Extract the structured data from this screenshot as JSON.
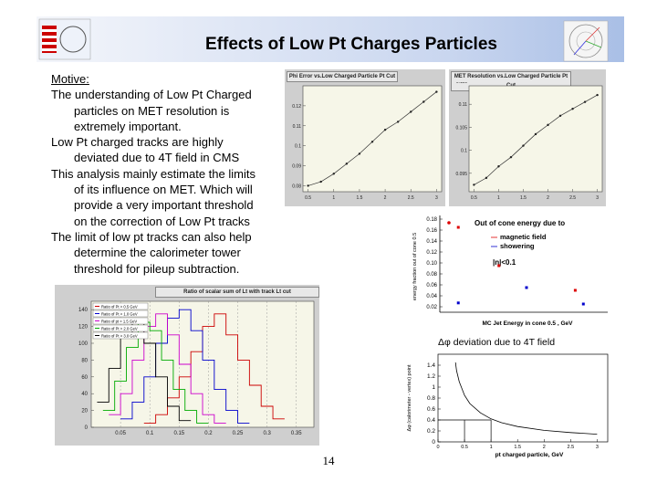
{
  "slide": {
    "title": "Effects of Low Pt Charges Particles",
    "page_number": "14"
  },
  "text": {
    "motive": "Motive:",
    "p1_a": "The understanding of Low Pt Charged",
    "p1_b": "particles on MET resolution is",
    "p1_c": "extremely important.",
    "p2_a": "Low Pt charged tracks are highly",
    "p2_b": "deviated due to 4T field in CMS",
    "p3_a": "This analysis mainly estimate the limits",
    "p3_b": "of its influence on MET. Which will",
    "p3_c": "provide a very important threshold",
    "p3_d": "on the correction of Low Pt tracks",
    "p4_a": "The limit of low pt tracks can also help",
    "p4_b": "determine the calorimeter tower",
    "p4_c": "threshold for pileup subtraction."
  },
  "chart_data": [
    {
      "type": "line",
      "title": "Phi Error vs.Low Charged Particle Pt Cut",
      "x": [
        0.5,
        0.75,
        1.0,
        1.25,
        1.5,
        1.75,
        2.0,
        2.25,
        2.5,
        2.75,
        3.0
      ],
      "y": [
        0.08,
        0.082,
        0.086,
        0.091,
        0.096,
        0.102,
        0.108,
        0.112,
        0.117,
        0.122,
        0.127
      ],
      "x_ticks": [
        "0.5",
        "1",
        "1.5",
        "2",
        "2.5",
        "3"
      ],
      "y_ticks": [
        "0.08",
        "0.09",
        "0.1",
        "0.11",
        "0.12"
      ],
      "xlim": [
        0.4,
        3.1
      ],
      "ylim": [
        0.077,
        0.13
      ]
    },
    {
      "type": "line",
      "title": "MET Resolution vs.Low Charged Particle Pt Cut",
      "x": [
        0.5,
        0.75,
        1.0,
        1.25,
        1.5,
        1.75,
        2.0,
        2.25,
        2.5,
        2.75,
        3.0
      ],
      "y": [
        0.0925,
        0.094,
        0.0965,
        0.0985,
        0.101,
        0.1035,
        0.1055,
        0.1075,
        0.109,
        0.1105,
        0.112
      ],
      "x_ticks": [
        "0.5",
        "1",
        "1.5",
        "2",
        "2.5",
        "3"
      ],
      "y_ticks": [
        "0.095",
        "0.1",
        "0.105",
        "0.11",
        "0.115"
      ],
      "xlim": [
        0.4,
        3.1
      ],
      "ylim": [
        0.091,
        0.114
      ]
    },
    {
      "type": "scatter",
      "xlabel": "MC Jet Energy in cone 0.5 , GeV",
      "ylabel": "energy fraction out of cone 0.5",
      "legend": [
        "Out of cone energy due to",
        "magnetic field",
        "showering"
      ],
      "annotation": "|η|<0.1",
      "y_ticks": [
        "0.18",
        "0.16",
        "0.14",
        "0.12",
        "0.10",
        "0.08",
        "0.06",
        "0.04",
        "0.02"
      ],
      "ylim": [
        0.02,
        0.18
      ],
      "series": [
        {
          "x": [
            0.08,
            0.33,
            0.8
          ],
          "y": [
            0.165,
            0.095,
            0.05
          ]
        },
        {
          "x": [
            0.08,
            0.5,
            0.85
          ],
          "y": [
            0.027,
            0.055,
            0.025
          ]
        }
      ]
    },
    {
      "type": "line",
      "title": "Δφ deviation due to 4T field",
      "xlabel": "pt charged particle, GeV",
      "ylabel": "Δφ (calorimeter - vertex) point",
      "y_ticks": [
        "1.4",
        "1.2",
        "1",
        "0.8",
        "0.6",
        "0.4",
        "0.2",
        "0"
      ],
      "x_ticks": [
        "0",
        "0.5",
        "1",
        "1.5",
        "2",
        "2.5",
        "3"
      ],
      "ylim": [
        0,
        1.6
      ],
      "xlim": [
        0,
        3.2
      ],
      "x": [
        0.33,
        0.35,
        0.4,
        0.5,
        0.6,
        0.8,
        1.0,
        1.2,
        1.5,
        2.0,
        2.5,
        3.0
      ],
      "y": [
        1.45,
        1.3,
        1.1,
        0.85,
        0.7,
        0.53,
        0.42,
        0.35,
        0.28,
        0.21,
        0.17,
        0.14
      ]
    },
    {
      "type": "bar",
      "title": "Ratio of scalar sum of Lt with track Lt cut",
      "legend": [
        "Ratio of Pt > 0.5 GeV",
        "Ratio of Pt > 1.0 GeV",
        "Ratio of pt > 1.5 GeV",
        "Ratio of Pt > 2.0 GeV",
        "Ratio of Pt > 3.0 GeV"
      ],
      "x_ticks": [
        "0.05",
        "0.1",
        "0.15",
        "0.2",
        "0.25",
        "0.3",
        "0.35"
      ],
      "y_ticks": [
        "140",
        "120",
        "100",
        "80",
        "60",
        "40",
        "20",
        "0"
      ],
      "ylim": [
        0,
        150
      ],
      "xlim": [
        0,
        0.38
      ],
      "series": [
        {
          "name": "Ratio of Pt > 0.5 GeV",
          "color": "#cc0000",
          "x": [
            0.1,
            0.12,
            0.14,
            0.16,
            0.18,
            0.2,
            0.22,
            0.24,
            0.26,
            0.28,
            0.3,
            0.32
          ],
          "y": [
            5,
            15,
            35,
            60,
            90,
            120,
            135,
            110,
            80,
            50,
            25,
            10
          ]
        },
        {
          "name": "Ratio of Pt > 1.0 GeV",
          "color": "#0000cc",
          "x": [
            0.06,
            0.08,
            0.1,
            0.12,
            0.14,
            0.16,
            0.18,
            0.2,
            0.22,
            0.24,
            0.26
          ],
          "y": [
            10,
            30,
            60,
            100,
            130,
            140,
            115,
            80,
            45,
            20,
            5
          ]
        },
        {
          "name": "Ratio of pt > 1.5 GeV",
          "color": "#cc00cc",
          "x": [
            0.04,
            0.06,
            0.08,
            0.1,
            0.12,
            0.14,
            0.16,
            0.18,
            0.2,
            0.22
          ],
          "y": [
            15,
            40,
            80,
            120,
            135,
            110,
            75,
            40,
            15,
            5
          ]
        },
        {
          "name": "Ratio of Pt > 2.0 GeV",
          "color": "#00aa00",
          "x": [
            0.03,
            0.05,
            0.07,
            0.09,
            0.11,
            0.13,
            0.15,
            0.17,
            0.19
          ],
          "y": [
            20,
            55,
            95,
            125,
            115,
            80,
            45,
            20,
            5
          ]
        },
        {
          "name": "Ratio of Pt > 3.0 GeV",
          "color": "#000000",
          "x": [
            0.02,
            0.04,
            0.06,
            0.08,
            0.1,
            0.12,
            0.14,
            0.16
          ],
          "y": [
            30,
            70,
            110,
            130,
            100,
            60,
            25,
            8
          ]
        }
      ]
    }
  ]
}
